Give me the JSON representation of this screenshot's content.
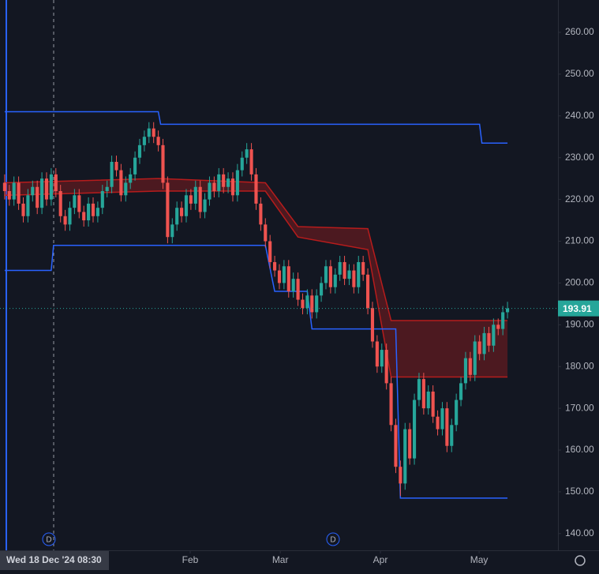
{
  "chart_data": {
    "type": "candlestick",
    "up_color": "#26a69a",
    "down_color": "#ef5350",
    "xlim": [
      -1,
      118.5
    ],
    "ylim": [
      136,
      267.75
    ],
    "xticks": [
      {
        "value": 39.85,
        "label": "Feb"
      },
      {
        "value": 59.2,
        "label": "Mar"
      },
      {
        "value": 80.7,
        "label": "Apr"
      },
      {
        "value": 101.9,
        "label": "May"
      }
    ],
    "yticks": [
      {
        "value": 140,
        "label": "140.00"
      },
      {
        "value": 150,
        "label": "150.00"
      },
      {
        "value": 160,
        "label": "160.00"
      },
      {
        "value": 170,
        "label": "170.00"
      },
      {
        "value": 180,
        "label": "180.00"
      },
      {
        "value": 190,
        "label": "190.00"
      },
      {
        "value": 200,
        "label": "200.00"
      },
      {
        "value": 210,
        "label": "210.00"
      },
      {
        "value": 220,
        "label": "220.00"
      },
      {
        "value": 230,
        "label": "230.00"
      },
      {
        "value": 240,
        "label": "240.00"
      },
      {
        "value": 250,
        "label": "250.00"
      },
      {
        "value": 260,
        "label": "260.00"
      }
    ],
    "last_price": 193.91,
    "crosshair_date": "Wed 18 Dec '24",
    "crosshair_time": "08:30",
    "events": [
      "D",
      "D"
    ],
    "ohlc": [
      [
        224,
        226,
        220,
        222
      ],
      [
        222,
        223.5,
        218.5,
        220
      ],
      [
        220,
        225.5,
        218.5,
        224
      ],
      [
        224,
        225.5,
        217.5,
        219
      ],
      [
        219,
        220.5,
        214.5,
        216
      ],
      [
        216,
        222.5,
        214.5,
        221
      ],
      [
        221,
        224.5,
        219.5,
        223
      ],
      [
        223,
        224.5,
        216.5,
        218
      ],
      [
        218,
        226.5,
        216.5,
        225
      ],
      [
        225,
        226.5,
        218.5,
        220
      ],
      [
        220,
        227.5,
        218.5,
        226
      ],
      [
        226,
        227.5,
        220.5,
        222
      ],
      [
        222,
        223.5,
        214.5,
        216
      ],
      [
        216,
        217.5,
        212.5,
        214
      ],
      [
        214,
        219.5,
        212.5,
        218
      ],
      [
        218,
        222.5,
        216.5,
        221
      ],
      [
        221,
        222.5,
        215.5,
        217
      ],
      [
        217,
        218.5,
        213.5,
        215
      ],
      [
        215,
        220.5,
        213.5,
        219
      ],
      [
        219,
        220.5,
        214.5,
        216
      ],
      [
        216,
        219.5,
        214.5,
        218
      ],
      [
        218,
        223.5,
        216.5,
        222
      ],
      [
        222,
        224.5,
        220.5,
        223
      ],
      [
        223,
        230.5,
        221.5,
        229
      ],
      [
        229,
        230.5,
        225.5,
        227
      ],
      [
        227,
        228.5,
        219.5,
        221
      ],
      [
        221,
        225.5,
        219.5,
        224
      ],
      [
        224,
        227.5,
        222.5,
        226
      ],
      [
        226,
        231.5,
        224.5,
        230
      ],
      [
        230,
        234.5,
        228.5,
        233
      ],
      [
        233,
        236.5,
        231.5,
        235
      ],
      [
        235,
        238.5,
        233.5,
        237
      ],
      [
        237,
        238.5,
        233.5,
        235
      ],
      [
        235,
        236.5,
        231.5,
        233
      ],
      [
        233,
        234.5,
        222.5,
        224
      ],
      [
        224,
        225.5,
        209.5,
        211
      ],
      [
        211,
        215.5,
        209.5,
        214
      ],
      [
        214,
        219.5,
        212.5,
        218
      ],
      [
        218,
        219.5,
        214.5,
        216
      ],
      [
        216,
        222.5,
        214.5,
        221
      ],
      [
        221,
        222.5,
        217.5,
        219
      ],
      [
        219,
        224.5,
        217.5,
        223
      ],
      [
        223,
        224.5,
        215.5,
        217
      ],
      [
        217,
        221.5,
        215.5,
        220
      ],
      [
        220,
        225.5,
        218.5,
        224
      ],
      [
        224,
        225.5,
        220.5,
        222
      ],
      [
        222,
        227.5,
        220.5,
        226
      ],
      [
        226,
        227.5,
        221.5,
        223
      ],
      [
        223,
        226.5,
        221.5,
        225
      ],
      [
        225,
        226.5,
        219.5,
        221
      ],
      [
        221,
        228.5,
        219.5,
        227
      ],
      [
        227,
        231.5,
        225.5,
        230
      ],
      [
        230,
        233.5,
        228.5,
        232
      ],
      [
        232,
        233.5,
        224.5,
        226
      ],
      [
        226,
        227.5,
        217.5,
        219
      ],
      [
        219,
        220.5,
        212.5,
        214
      ],
      [
        214,
        215.5,
        208.5,
        210
      ],
      [
        210,
        211.5,
        203.5,
        205
      ],
      [
        205,
        206.5,
        201.5,
        203
      ],
      [
        203,
        204.5,
        198.5,
        200
      ],
      [
        200,
        205.5,
        198.5,
        204
      ],
      [
        204,
        205.5,
        196.5,
        198
      ],
      [
        198,
        202.5,
        196.5,
        201
      ],
      [
        201,
        202.5,
        194.5,
        196
      ],
      [
        196,
        197.5,
        192.5,
        194
      ],
      [
        194,
        198.5,
        192.5,
        197
      ],
      [
        197,
        198.5,
        191.5,
        193
      ],
      [
        193,
        198.5,
        191.5,
        197
      ],
      [
        197,
        201.5,
        195.5,
        200
      ],
      [
        200,
        205.5,
        198.5,
        204
      ],
      [
        204,
        205.5,
        197.5,
        199
      ],
      [
        199,
        203.5,
        197.5,
        202
      ],
      [
        202,
        206.5,
        200.5,
        205
      ],
      [
        205,
        206.5,
        199.5,
        201
      ],
      [
        201,
        204.5,
        199.5,
        203
      ],
      [
        203,
        204.5,
        197.5,
        199
      ],
      [
        199,
        206.5,
        197.5,
        205
      ],
      [
        205,
        206.5,
        200.5,
        202
      ],
      [
        202,
        203.5,
        192.5,
        194
      ],
      [
        194,
        195.5,
        184.5,
        186
      ],
      [
        186,
        187.5,
        178.5,
        180
      ],
      [
        180,
        185.5,
        178.5,
        184
      ],
      [
        184,
        185.5,
        174.5,
        176
      ],
      [
        176,
        177.5,
        164.5,
        166
      ],
      [
        166,
        167.5,
        154.5,
        156
      ],
      [
        156,
        157.5,
        149,
        152
      ],
      [
        152,
        166.5,
        150.5,
        165
      ],
      [
        165,
        166.5,
        156.5,
        158
      ],
      [
        158,
        173.5,
        156.5,
        172
      ],
      [
        172,
        178.5,
        170.5,
        177
      ],
      [
        177,
        178.5,
        168.5,
        170
      ],
      [
        170,
        175.5,
        168.5,
        174
      ],
      [
        174,
        175.5,
        166.5,
        168
      ],
      [
        168,
        169.5,
        163.5,
        165
      ],
      [
        165,
        171.5,
        163.5,
        170
      ],
      [
        170,
        171.5,
        159.5,
        161
      ],
      [
        161,
        167.5,
        159.5,
        166
      ],
      [
        166,
        173.5,
        164.5,
        172
      ],
      [
        172,
        177.5,
        170.5,
        176
      ],
      [
        176,
        183.5,
        174.5,
        182
      ],
      [
        182,
        183.5,
        176.5,
        178
      ],
      [
        178,
        187.5,
        176.5,
        186
      ],
      [
        186,
        187.5,
        181.5,
        183
      ],
      [
        183,
        189.5,
        181.5,
        188
      ],
      [
        188,
        189.5,
        183.5,
        185
      ],
      [
        185,
        191.5,
        183.5,
        190
      ],
      [
        190,
        191.5,
        187.5,
        189
      ],
      [
        189,
        194.5,
        187.5,
        193
      ],
      [
        193,
        195.5,
        191.5,
        193.91
      ]
    ],
    "bands": [
      {
        "color": "#2962ff",
        "x": [
          0,
          33,
          33.5,
          102,
          102.5,
          108
        ],
        "values": [
          241,
          241,
          238,
          238,
          233.5,
          233.5
        ]
      },
      {
        "color": "#2962ff",
        "x": [
          0,
          10,
          10.5,
          56,
          58,
          65,
          66,
          84,
          85,
          108
        ],
        "values": [
          203,
          203,
          209,
          209,
          198,
          198,
          189,
          189,
          148.5,
          148.5
        ]
      }
    ],
    "cloud": {
      "color": "#b71c1c",
      "x": [
        0,
        33,
        56,
        63,
        78,
        83,
        108
      ],
      "upper": [
        224,
        225,
        224,
        213.5,
        213,
        191,
        191
      ],
      "lower": [
        221,
        222,
        222,
        211,
        208,
        177.5,
        177.5
      ]
    }
  }
}
